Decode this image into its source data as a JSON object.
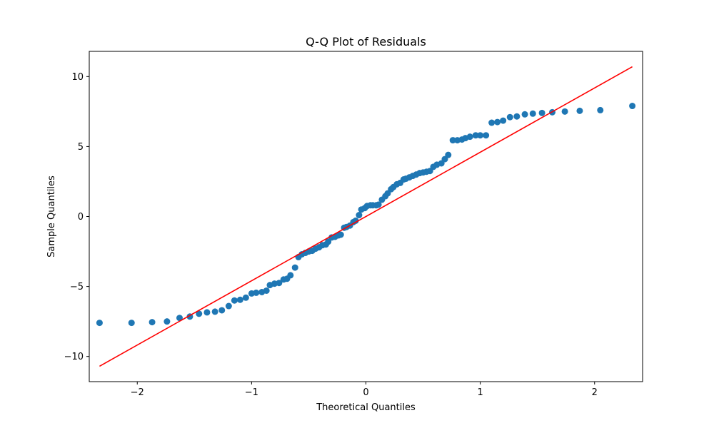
{
  "chart_data": {
    "type": "scatter",
    "title": "Q-Q Plot of Residuals",
    "xlabel": "Theoretical Quantiles",
    "ylabel": "Sample Quantiles",
    "xlim": [
      -2.42,
      2.42
    ],
    "ylim": [
      -11.8,
      11.8
    ],
    "xticks": [
      -2,
      -1,
      0,
      1,
      2
    ],
    "xtick_labels": [
      "−2",
      "−1",
      "0",
      "1",
      "2"
    ],
    "yticks": [
      -10,
      -5,
      0,
      5,
      10
    ],
    "ytick_labels": [
      "−10",
      "−5",
      "0",
      "5",
      "10"
    ],
    "grid": false,
    "marker_color": "#1f77b4",
    "line_color": "#ff0000",
    "reference_line": {
      "x": [
        -2.33,
        2.33
      ],
      "y": [
        -10.7,
        10.7
      ]
    },
    "series": [
      {
        "x": [
          -2.33,
          -2.05,
          -1.87,
          -1.74,
          -1.63,
          -1.54,
          -1.46,
          -1.39,
          -1.32,
          -1.26,
          -1.2,
          -1.15,
          -1.1,
          -1.05,
          -1.0,
          -0.96,
          -0.91,
          -0.87,
          -0.84,
          -0.8,
          -0.76,
          -0.72,
          -0.69,
          -0.66,
          -0.62,
          -0.59,
          -0.56,
          -0.53,
          -0.5,
          -0.47,
          -0.44,
          -0.41,
          -0.38,
          -0.35,
          -0.33,
          -0.3,
          -0.27,
          -0.24,
          -0.22,
          -0.19,
          -0.17,
          -0.14,
          -0.11,
          -0.09,
          -0.06,
          -0.04,
          -0.01,
          0.01,
          0.04,
          0.06,
          0.09,
          0.11,
          0.14,
          0.17,
          0.19,
          0.22,
          0.24,
          0.27,
          0.3,
          0.33,
          0.35,
          0.38,
          0.41,
          0.44,
          0.47,
          0.5,
          0.53,
          0.56,
          0.59,
          0.62,
          0.66,
          0.69,
          0.72,
          0.76,
          0.8,
          0.84,
          0.87,
          0.91,
          0.96,
          1.0,
          1.05,
          1.1,
          1.15,
          1.2,
          1.26,
          1.32,
          1.39,
          1.46,
          1.54,
          1.63,
          1.74,
          1.87,
          2.05,
          2.33
        ],
        "y": [
          -7.6,
          -7.6,
          -7.55,
          -7.5,
          -7.25,
          -7.15,
          -6.95,
          -6.85,
          -6.8,
          -6.7,
          -6.4,
          -6.0,
          -5.95,
          -5.8,
          -5.5,
          -5.45,
          -5.4,
          -5.3,
          -4.9,
          -4.8,
          -4.75,
          -4.5,
          -4.45,
          -4.2,
          -3.65,
          -2.9,
          -2.7,
          -2.6,
          -2.5,
          -2.45,
          -2.3,
          -2.2,
          -2.05,
          -2.0,
          -1.8,
          -1.5,
          -1.45,
          -1.35,
          -1.3,
          -0.8,
          -0.75,
          -0.65,
          -0.4,
          -0.3,
          0.1,
          0.5,
          0.6,
          0.75,
          0.8,
          0.8,
          0.8,
          0.85,
          1.2,
          1.45,
          1.65,
          1.95,
          2.1,
          2.3,
          2.4,
          2.65,
          2.7,
          2.8,
          2.9,
          3.0,
          3.1,
          3.15,
          3.2,
          3.25,
          3.55,
          3.7,
          3.8,
          4.1,
          4.4,
          5.45,
          5.45,
          5.5,
          5.6,
          5.7,
          5.8,
          5.8,
          5.8,
          6.7,
          6.75,
          6.85,
          7.1,
          7.15,
          7.3,
          7.35,
          7.4,
          7.45,
          7.5,
          7.55,
          7.6,
          7.9
        ]
      }
    ]
  }
}
